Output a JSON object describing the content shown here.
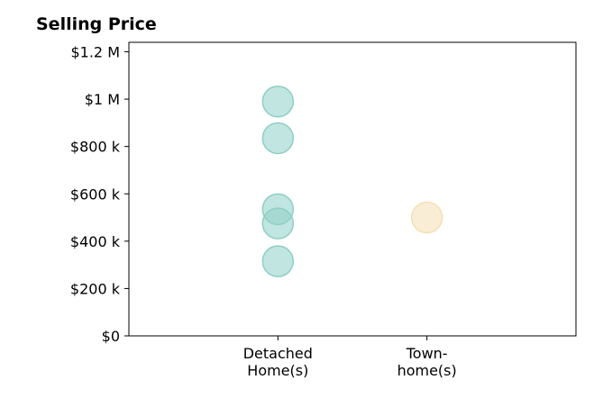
{
  "chart_data": {
    "type": "scatter",
    "title": "Selling Price",
    "xlabel": "",
    "ylabel": "",
    "categories": [
      "Detached\nHome(s)",
      "Town-\nhome(s)"
    ],
    "ylim": [
      0,
      1240000
    ],
    "yticks": [
      {
        "value": 0,
        "label": "$0"
      },
      {
        "value": 200000,
        "label": "$200 k"
      },
      {
        "value": 400000,
        "label": "$400 k"
      },
      {
        "value": 600000,
        "label": "$600 k"
      },
      {
        "value": 800000,
        "label": "$800 k"
      },
      {
        "value": 1000000,
        "label": "$1 M"
      },
      {
        "value": 1200000,
        "label": "$1.2 M"
      }
    ],
    "series": [
      {
        "category": "Detached\nHome(s)",
        "color": "#8ecfc6",
        "values": [
          990000,
          835000,
          535000,
          475000,
          315000
        ]
      },
      {
        "category": "Town-\nhome(s)",
        "color": "#f5dfb3",
        "values": [
          500000
        ]
      }
    ],
    "grid": false,
    "legend": "none"
  }
}
